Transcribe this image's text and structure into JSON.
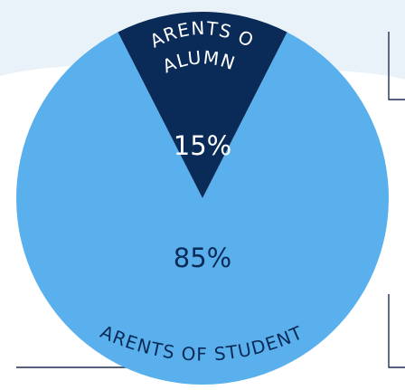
{
  "chart_data": {
    "type": "pie",
    "title": "",
    "slices": [
      {
        "label": "PARENTS OF ALUMNI",
        "label_lines": [
          "PARENTS OF",
          "ALUMNI"
        ],
        "value": 15,
        "value_label": "15%",
        "color": "#0a2a58"
      },
      {
        "label": "PARENTS OF STUDENTS",
        "label_lines": [
          "PARENTS OF STUDENTS"
        ],
        "value": 85,
        "value_label": "85%",
        "color": "#5ab0ec"
      }
    ],
    "legend": "none",
    "grid": false
  }
}
